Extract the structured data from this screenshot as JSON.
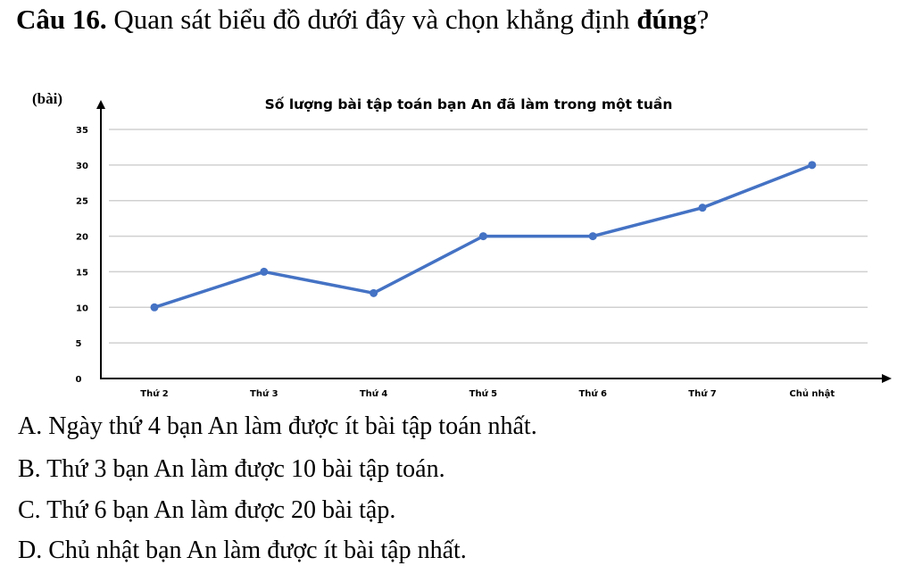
{
  "question": {
    "number": "Câu 16.",
    "text": "Quan sát biểu đồ dưới đây và chọn khẳng định ",
    "emphasis": "đúng",
    "end": "?"
  },
  "chart_data": {
    "type": "line",
    "title": "Số lượng bài tập toán bạn An đã làm trong một tuần",
    "ylabel": "(bài)",
    "xlabel": "",
    "categories": [
      "Thứ 2",
      "Thứ 3",
      "Thứ 4",
      "Thứ 5",
      "Thứ 6",
      "Thứ 7",
      "Chủ nhật"
    ],
    "values": [
      10,
      15,
      12,
      20,
      20,
      24,
      30
    ],
    "ylim": [
      0,
      35
    ],
    "yticks": [
      0,
      5,
      10,
      15,
      20,
      25,
      30,
      35
    ],
    "grid": true,
    "color": "#4472C4"
  },
  "options": [
    "A. Ngày thứ 4 bạn An làm được ít bài tập toán nhất.",
    "B. Thứ 3 bạn An làm được 10 bài tập toán.",
    "C. Thứ 6 bạn An làm được 20 bài tập.",
    "D. Chủ nhật bạn An làm được ít bài tập nhất."
  ]
}
